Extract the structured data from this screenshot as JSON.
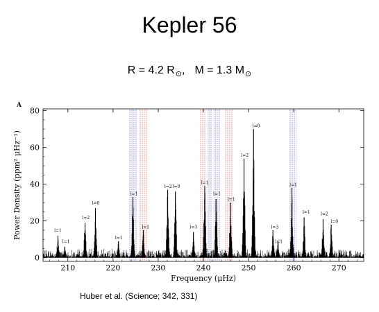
{
  "slide": {
    "title": "Kepler 56",
    "params": {
      "radius_text": "R = 4.2 R",
      "radius_sub": "⊙",
      "sep": ",",
      "mass_text": "M = 1.3 M",
      "mass_sub": "⊙"
    },
    "citation": "Huber et al. (Science; 342, 331)"
  },
  "chart_data": {
    "type": "line",
    "panel_label": "A",
    "xlabel": "Frequency (μHz)",
    "ylabel": "Power Density (ppm² μHz⁻¹)",
    "xlim": [
      204.5,
      275.5
    ],
    "ylim": [
      -2,
      81
    ],
    "xticks": [
      210,
      220,
      230,
      240,
      250,
      260,
      270
    ],
    "yticks": [
      0,
      20,
      40,
      60,
      80
    ],
    "grid": false,
    "baseline_noise_amplitude": 4,
    "peaks": [
      {
        "x": 207.8,
        "y": 12
      },
      {
        "x": 209.3,
        "y": 6
      },
      {
        "x": 213.8,
        "y": 19
      },
      {
        "x": 216.1,
        "y": 27
      },
      {
        "x": 221.2,
        "y": 9
      },
      {
        "x": 224.4,
        "y": 33
      },
      {
        "x": 226.7,
        "y": 15
      },
      {
        "x": 232.1,
        "y": 37
      },
      {
        "x": 233.8,
        "y": 36
      },
      {
        "x": 237.8,
        "y": 14
      },
      {
        "x": 240.3,
        "y": 39
      },
      {
        "x": 242.8,
        "y": 32
      },
      {
        "x": 246.0,
        "y": 30
      },
      {
        "x": 249.0,
        "y": 54
      },
      {
        "x": 251.1,
        "y": 70
      },
      {
        "x": 255.4,
        "y": 15
      },
      {
        "x": 256.5,
        "y": 9
      },
      {
        "x": 259.6,
        "y": 38
      },
      {
        "x": 262.3,
        "y": 22
      },
      {
        "x": 266.5,
        "y": 21
      },
      {
        "x": 268.3,
        "y": 18
      }
    ],
    "annotations": [
      {
        "text": "l=1",
        "x": 207.8,
        "y": 14
      },
      {
        "text": "l=1",
        "x": 209.6,
        "y": 8
      },
      {
        "text": "l=2",
        "x": 214.0,
        "y": 21
      },
      {
        "text": "l=0",
        "x": 216.2,
        "y": 29
      },
      {
        "text": "l=1",
        "x": 221.3,
        "y": 10
      },
      {
        "text": "l=1",
        "x": 224.6,
        "y": 34
      },
      {
        "text": "l=1",
        "x": 227.2,
        "y": 16
      },
      {
        "text": "l=2",
        "x": 232.2,
        "y": 38
      },
      {
        "text": "l=0",
        "x": 234.0,
        "y": 38
      },
      {
        "text": "l=3",
        "x": 237.8,
        "y": 16
      },
      {
        "text": "l=1",
        "x": 240.3,
        "y": 40
      },
      {
        "text": "l=1",
        "x": 243.0,
        "y": 34
      },
      {
        "text": "l=1",
        "x": 246.2,
        "y": 31
      },
      {
        "text": "l=2",
        "x": 249.2,
        "y": 55
      },
      {
        "text": "l=0",
        "x": 251.7,
        "y": 71
      },
      {
        "text": "l=3",
        "x": 255.8,
        "y": 16
      },
      {
        "text": "l=1",
        "x": 256.7,
        "y": 8
      },
      {
        "text": "l=1",
        "x": 259.9,
        "y": 39
      },
      {
        "text": "l=1",
        "x": 262.8,
        "y": 24
      },
      {
        "text": "l=2",
        "x": 266.8,
        "y": 23
      },
      {
        "text": "l=0",
        "x": 269.0,
        "y": 19
      }
    ],
    "shaded_bands": [
      {
        "from": 223.6,
        "to": 225.4,
        "color": "#6a6ad2"
      },
      {
        "from": 225.8,
        "to": 227.8,
        "color": "#d26a6a"
      },
      {
        "from": 239.0,
        "to": 240.6,
        "color": "#d26a6a"
      },
      {
        "from": 240.8,
        "to": 241.8,
        "color": "#6a6ad2"
      },
      {
        "from": 242.2,
        "to": 243.8,
        "color": "#6a6ad2"
      },
      {
        "from": 244.6,
        "to": 246.6,
        "color": "#d26a6a"
      },
      {
        "from": 259.0,
        "to": 260.6,
        "color": "#6a6ad2"
      }
    ],
    "line_color": "#000000"
  }
}
